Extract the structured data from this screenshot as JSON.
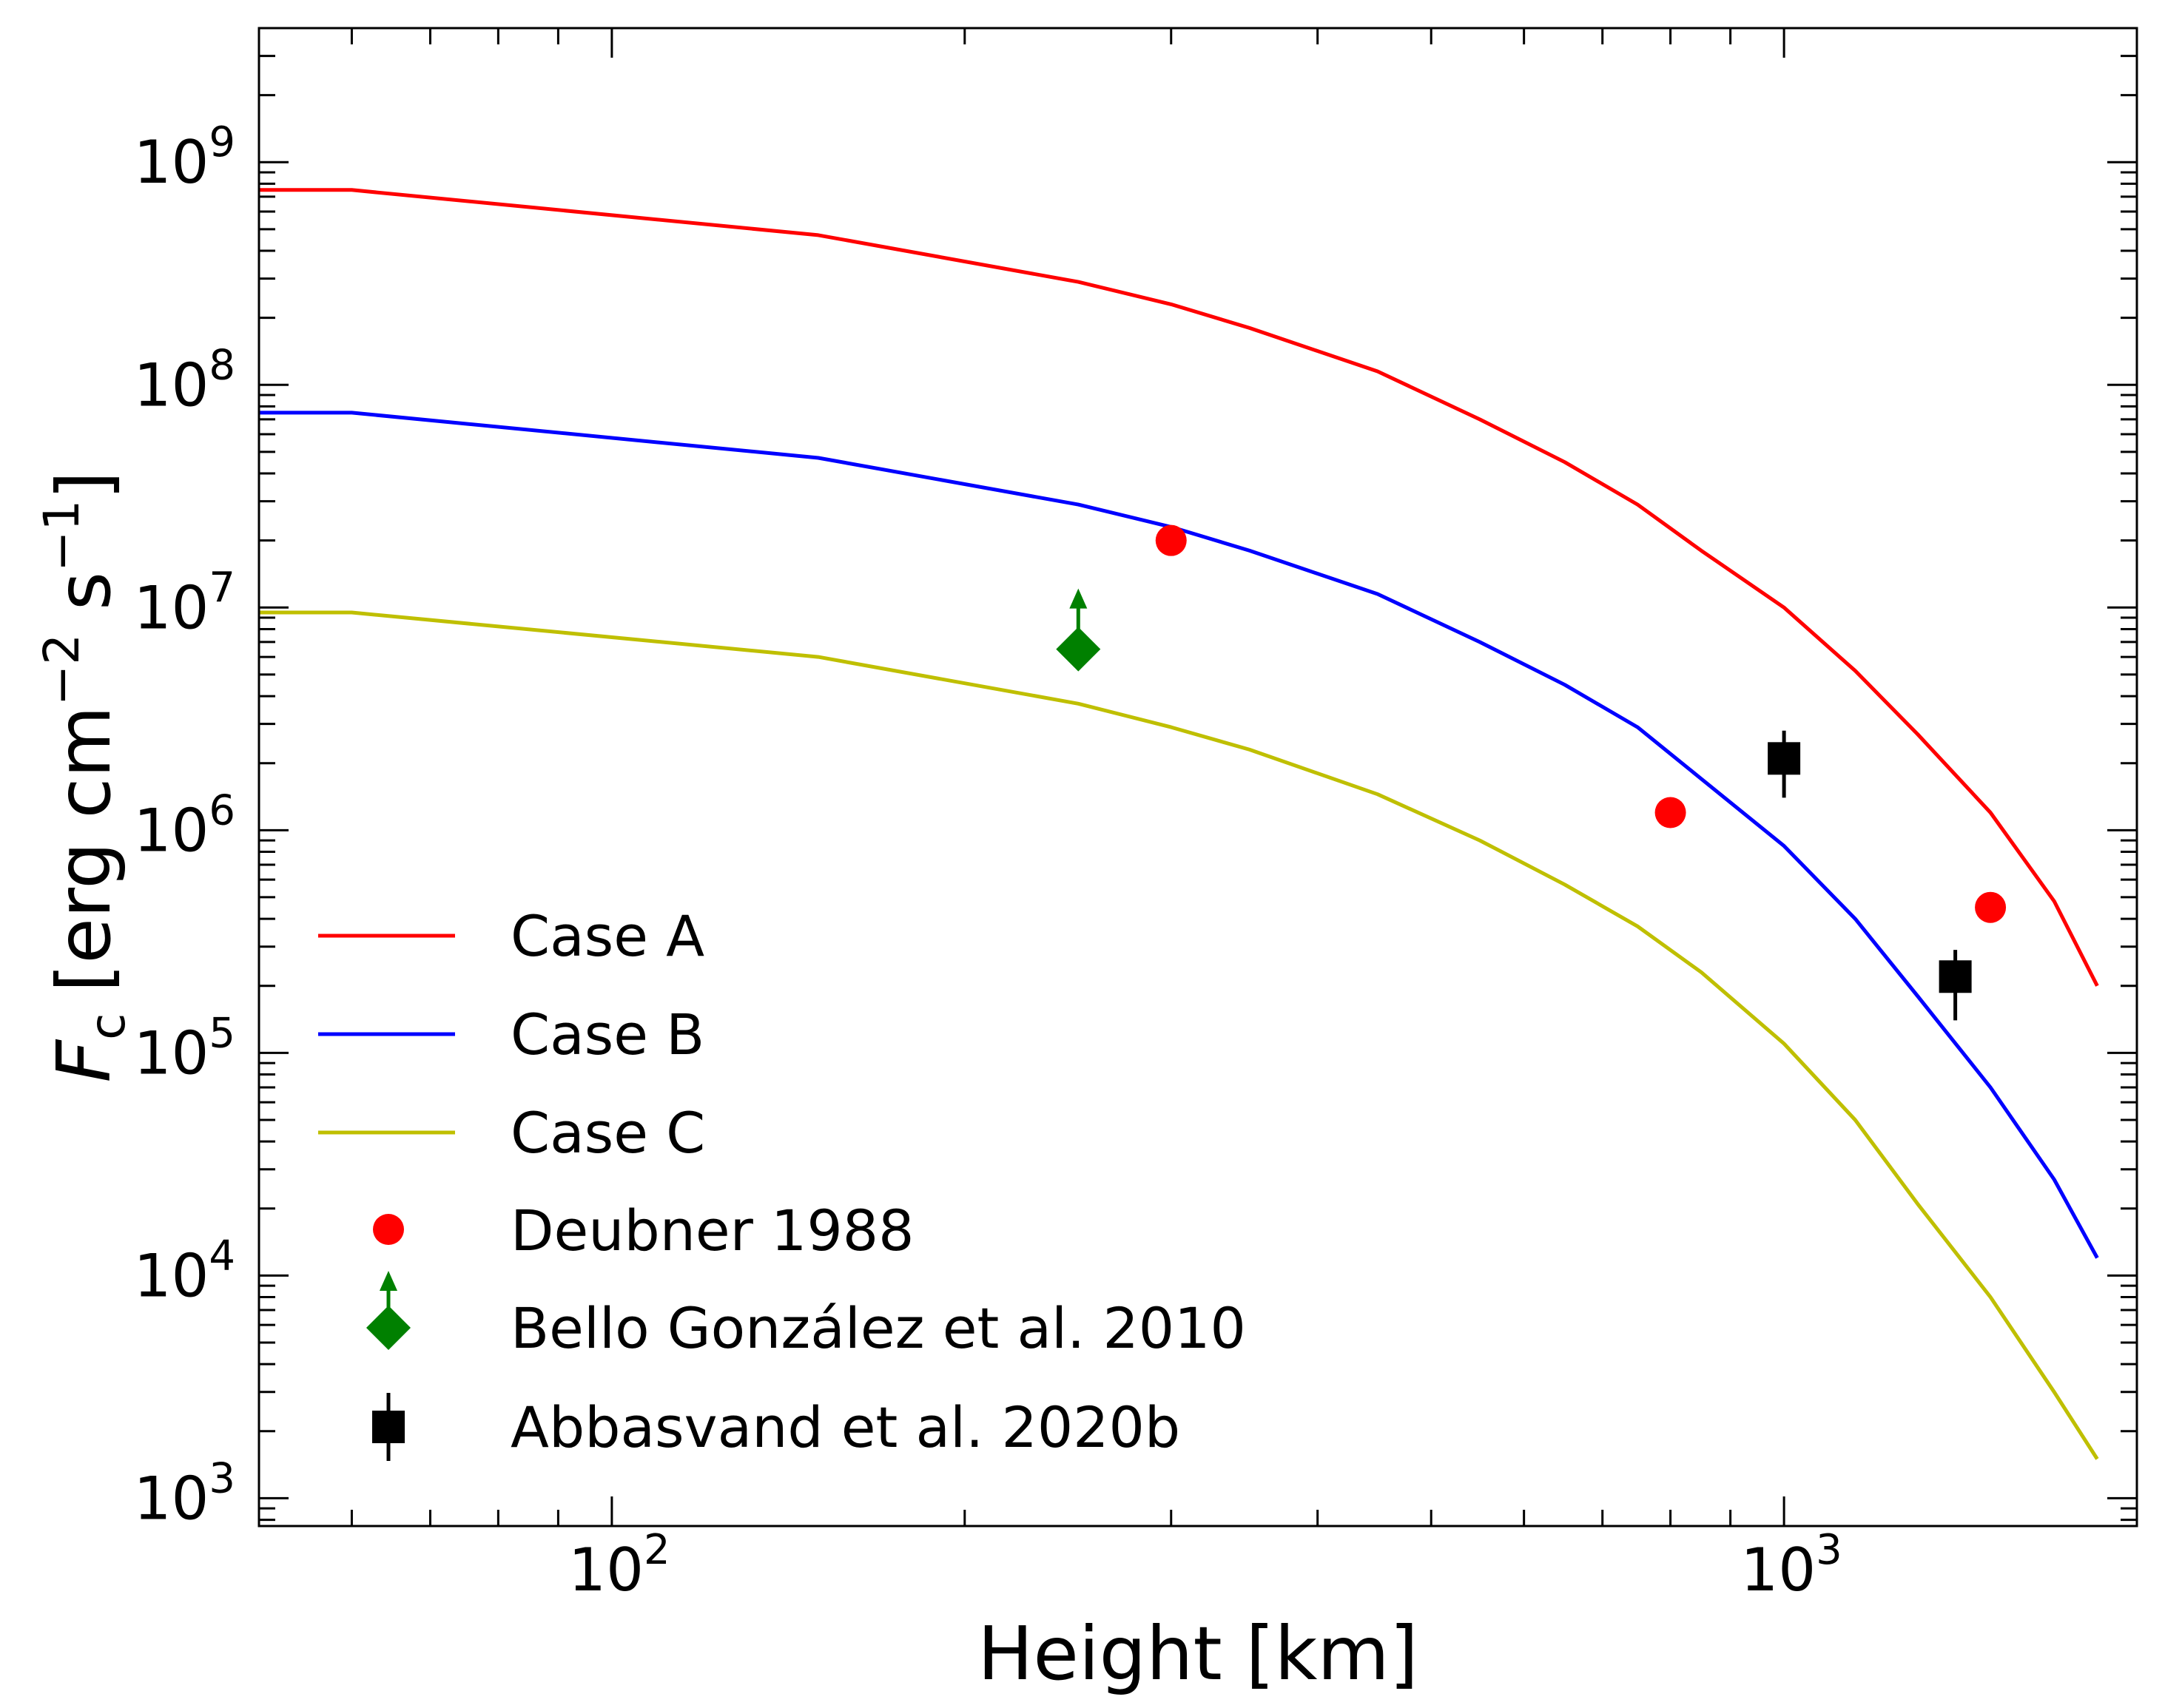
{
  "chart_data": {
    "type": "line",
    "xscale": "log",
    "yscale": "log",
    "xlim": [
      50,
      2000
    ],
    "ylim": [
      750,
      4000000000
    ],
    "xlabel": "Height [km]",
    "ylabel": {
      "symbol": "F",
      "subscript": "c",
      "units_open": "[erg cm",
      "units_exp1": "−2",
      "units_mid": " s",
      "units_exp2": "−1",
      "units_close": "]"
    },
    "xticks": [
      {
        "value": 100,
        "base": "10",
        "exp": "2"
      },
      {
        "value": 1000,
        "base": "10",
        "exp": "3"
      }
    ],
    "yticks": [
      {
        "value": 1000,
        "base": "10",
        "exp": "3"
      },
      {
        "value": 10000,
        "base": "10",
        "exp": "4"
      },
      {
        "value": 100000,
        "base": "10",
        "exp": "5"
      },
      {
        "value": 1000000,
        "base": "10",
        "exp": "6"
      },
      {
        "value": 10000000,
        "base": "10",
        "exp": "7"
      },
      {
        "value": 100000000,
        "base": "10",
        "exp": "8"
      },
      {
        "value": 1000000000,
        "base": "10",
        "exp": "9"
      }
    ],
    "series": [
      {
        "name": "Case A",
        "color": "#ff0000",
        "x": [
          50,
          60,
          150,
          250,
          300,
          350,
          450,
          550,
          650,
          750,
          850,
          1000,
          1150,
          1300,
          1500,
          1700,
          1850
        ],
        "y": [
          750000000,
          750000000,
          470000000,
          290000000,
          230000000,
          180000000,
          115000000,
          70000000,
          45000000,
          29000000,
          18000000,
          10000000,
          5200000,
          2700000,
          1200000,
          480000,
          200000
        ]
      },
      {
        "name": "Case B",
        "color": "#0000ff",
        "x": [
          50,
          60,
          150,
          250,
          300,
          350,
          450,
          550,
          650,
          750,
          850,
          1000,
          1150,
          1300,
          1500,
          1700,
          1850
        ],
        "y": [
          75000000,
          75000000,
          47000000,
          29000000,
          23000000,
          18000000,
          11500000,
          7000000,
          4500000,
          2900000,
          1700000,
          850000,
          400000,
          180000,
          70000,
          27000,
          12000
        ]
      },
      {
        "name": "Case C",
        "color": "#bfbf00",
        "x": [
          50,
          60,
          150,
          250,
          300,
          350,
          450,
          550,
          650,
          750,
          850,
          1000,
          1150,
          1300,
          1500,
          1700,
          1850
        ],
        "y": [
          9500000,
          9500000,
          6000000,
          3700000,
          2900000,
          2300000,
          1450000,
          900000,
          570000,
          370000,
          230000,
          110000,
          50000,
          21000,
          8000,
          3000,
          1500
        ]
      }
    ],
    "observations": [
      {
        "name": "Deubner 1988",
        "marker": "circle",
        "color": "#ff0000",
        "points": [
          {
            "x": 300,
            "y": 20000000
          },
          {
            "x": 800,
            "y": 1200000
          },
          {
            "x": 1500,
            "y": 450000
          }
        ]
      },
      {
        "name": "Bello González et al. 2010",
        "marker": "diamond-lower-limit",
        "color": "#008000",
        "points": [
          {
            "x": 250,
            "y": 6500000
          }
        ]
      },
      {
        "name": "Abbasvand et al. 2020b",
        "marker": "square-errorbar",
        "color": "#000000",
        "points": [
          {
            "x": 1000,
            "y": 2100000,
            "ylow": 1400000,
            "yhigh": 2800000
          },
          {
            "x": 1400,
            "y": 220000,
            "ylow": 140000,
            "yhigh": 290000
          }
        ]
      }
    ],
    "legend": {
      "position": "lower-left",
      "entries": [
        "Case A",
        "Case B",
        "Case C",
        "Deubner 1988",
        "Bello González et al. 2010",
        "Abbasvand et al. 2020b"
      ]
    }
  }
}
